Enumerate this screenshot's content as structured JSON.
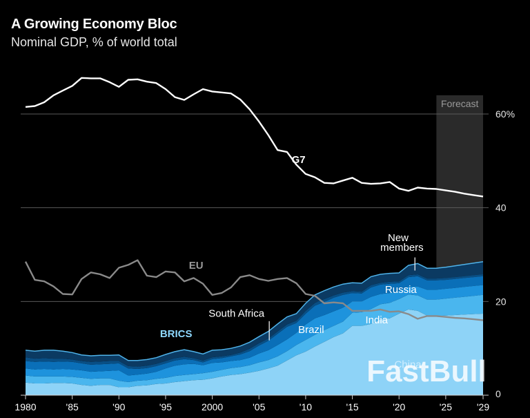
{
  "header": {
    "title": "A Growing Economy Bloc",
    "subtitle": "Nominal GDP, % of world total"
  },
  "colors": {
    "background": "#000000",
    "grid": "#5a5a5a",
    "g7": "#ffffff",
    "eu": "#8a8a8a",
    "forecast_band": "#2a2a2a",
    "brics_label": "#8ed8ff",
    "stack": [
      "#8ed3f7",
      "#4ab6ee",
      "#1e93dd",
      "#0a6fb8",
      "#094f85",
      "#0b3a62"
    ]
  },
  "watermark": "FastBull",
  "chart_data": {
    "type": "area",
    "title": "A Growing Economy Bloc",
    "subtitle": "Nominal GDP, % of world total",
    "xlim": [
      1980,
      2029
    ],
    "ylim": [
      0,
      64
    ],
    "x_ticks": [
      1980,
      1985,
      1990,
      1995,
      2000,
      2005,
      2010,
      2015,
      2020,
      2025,
      2029
    ],
    "x_tick_labels": [
      "1980",
      "'85",
      "'90",
      "'95",
      "2000",
      "'05",
      "'10",
      "'15",
      "'20",
      "'25",
      "'29"
    ],
    "y_ticks": [
      0,
      20,
      40,
      60
    ],
    "y_tick_labels": [
      "0",
      "20",
      "40",
      "60%"
    ],
    "grid": true,
    "forecast": {
      "label": "Forecast",
      "start": 2024,
      "end": 2029
    },
    "x": [
      1980,
      1981,
      1982,
      1983,
      1984,
      1985,
      1986,
      1987,
      1988,
      1989,
      1990,
      1991,
      1992,
      1993,
      1994,
      1995,
      1996,
      1997,
      1998,
      1999,
      2000,
      2001,
      2002,
      2003,
      2004,
      2005,
      2006,
      2007,
      2008,
      2009,
      2010,
      2011,
      2012,
      2013,
      2014,
      2015,
      2016,
      2017,
      2018,
      2019,
      2020,
      2021,
      2022,
      2023,
      2024,
      2025,
      2026,
      2027,
      2028,
      2029
    ],
    "lines": [
      {
        "name": "G7",
        "label": "G7",
        "values": [
          61.5,
          61.7,
          62.5,
          64.0,
          65.0,
          66.0,
          67.7,
          67.6,
          67.6,
          66.8,
          65.8,
          67.3,
          67.4,
          66.9,
          66.6,
          65.3,
          63.6,
          63.0,
          64.2,
          65.3,
          64.8,
          64.6,
          64.4,
          63.1,
          61.0,
          58.4,
          55.5,
          52.3,
          51.9,
          49.2,
          47.2,
          46.5,
          45.3,
          45.2,
          45.8,
          46.4,
          45.3,
          45.1,
          45.2,
          45.5,
          44.1,
          43.6,
          44.3,
          44.1,
          44.0,
          43.7,
          43.4,
          43.0,
          42.7,
          42.4
        ]
      },
      {
        "name": "EU",
        "label": "EU",
        "values": [
          28.5,
          24.6,
          24.3,
          23.2,
          21.6,
          21.5,
          24.8,
          26.2,
          25.8,
          25.0,
          27.2,
          27.8,
          28.8,
          25.5,
          25.2,
          26.4,
          26.2,
          24.3,
          25.0,
          23.8,
          21.4,
          21.8,
          23.0,
          25.2,
          25.6,
          24.8,
          24.4,
          24.8,
          25.0,
          23.9,
          21.6,
          21.2,
          19.6,
          19.8,
          19.6,
          18.0,
          18.0,
          18.0,
          18.3,
          17.8,
          17.9,
          17.3,
          16.3,
          16.9,
          16.9,
          16.7,
          16.5,
          16.4,
          16.2,
          16.0
        ]
      }
    ],
    "series": [
      {
        "name": "China",
        "label": "China",
        "values": [
          2.7,
          2.5,
          2.5,
          2.6,
          2.6,
          2.5,
          2.2,
          2.0,
          2.2,
          2.2,
          1.7,
          1.7,
          2.0,
          2.1,
          2.4,
          2.5,
          2.8,
          3.0,
          3.2,
          3.3,
          3.6,
          4.0,
          4.3,
          4.5,
          4.8,
          5.2,
          5.7,
          6.3,
          7.4,
          8.5,
          9.3,
          10.4,
          11.4,
          12.4,
          13.2,
          14.8,
          14.8,
          15.2,
          16.2,
          16.4,
          17.4,
          18.3,
          18.0,
          17.0,
          16.9,
          17.0,
          17.1,
          17.2,
          17.3,
          17.4
        ]
      },
      {
        "name": "India",
        "label": "India",
        "values": [
          1.5,
          1.5,
          1.5,
          1.4,
          1.4,
          1.4,
          1.5,
          1.5,
          1.4,
          1.4,
          1.4,
          1.1,
          1.1,
          1.1,
          1.1,
          1.2,
          1.3,
          1.3,
          1.3,
          1.4,
          1.4,
          1.4,
          1.5,
          1.5,
          1.6,
          1.8,
          1.8,
          2.0,
          2.0,
          2.2,
          2.5,
          2.5,
          2.5,
          2.4,
          2.5,
          2.8,
          2.9,
          3.2,
          3.2,
          3.3,
          3.1,
          3.2,
          3.3,
          3.4,
          3.5,
          3.6,
          3.7,
          3.8,
          3.9,
          4.0
        ]
      },
      {
        "name": "Brazil",
        "label": "Brazil",
        "values": [
          1.5,
          1.5,
          1.6,
          1.5,
          1.6,
          1.6,
          1.6,
          1.5,
          1.5,
          1.6,
          2.2,
          1.4,
          1.3,
          1.4,
          1.5,
          2.0,
          2.2,
          2.3,
          2.2,
          1.7,
          1.9,
          1.6,
          1.5,
          1.5,
          1.6,
          1.9,
          2.1,
          2.4,
          2.5,
          2.6,
          3.3,
          3.5,
          3.2,
          3.1,
          3.0,
          2.4,
          2.3,
          2.6,
          2.2,
          2.1,
          1.7,
          1.7,
          1.9,
          2.1,
          2.1,
          2.1,
          2.1,
          2.1,
          2.1,
          2.1
        ]
      },
      {
        "name": "Russia",
        "label": "Russia",
        "values": [
          1.6,
          1.6,
          1.6,
          1.6,
          1.6,
          1.6,
          1.5,
          1.5,
          1.5,
          1.5,
          1.5,
          1.5,
          1.2,
          1.2,
          1.2,
          1.1,
          1.1,
          1.1,
          0.8,
          0.6,
          0.8,
          0.9,
          1.0,
          1.2,
          1.4,
          1.7,
          2.0,
          2.4,
          2.7,
          2.1,
          2.3,
          2.7,
          2.8,
          2.9,
          2.7,
          1.8,
          1.7,
          2.0,
          2.0,
          2.0,
          1.7,
          2.0,
          2.2,
          2.0,
          2.0,
          1.9,
          1.9,
          1.9,
          1.9,
          1.9
        ]
      },
      {
        "name": "South Africa",
        "label": "South Africa",
        "values": [
          0.8,
          0.7,
          0.7,
          0.7,
          0.6,
          0.5,
          0.5,
          0.6,
          0.6,
          0.6,
          0.5,
          0.5,
          0.5,
          0.5,
          0.5,
          0.5,
          0.5,
          0.5,
          0.4,
          0.4,
          0.4,
          0.4,
          0.3,
          0.4,
          0.5,
          0.5,
          0.5,
          0.5,
          0.5,
          0.5,
          0.6,
          0.6,
          0.6,
          0.5,
          0.5,
          0.4,
          0.4,
          0.5,
          0.4,
          0.4,
          0.4,
          0.4,
          0.4,
          0.4,
          0.4,
          0.4,
          0.4,
          0.4,
          0.4,
          0.4
        ]
      },
      {
        "name": "New members",
        "label": "New\nmembers",
        "values": [
          1.5,
          1.6,
          1.7,
          1.8,
          1.6,
          1.5,
          1.3,
          1.3,
          1.3,
          1.2,
          1.3,
          1.2,
          1.3,
          1.3,
          1.3,
          1.4,
          1.4,
          1.5,
          1.4,
          1.4,
          1.5,
          1.4,
          1.4,
          1.4,
          1.4,
          1.4,
          1.5,
          1.6,
          1.6,
          1.5,
          1.6,
          1.7,
          1.8,
          1.8,
          1.8,
          1.8,
          1.8,
          1.8,
          1.8,
          1.8,
          1.8,
          2.1,
          2.3,
          2.2,
          2.2,
          2.3,
          2.4,
          2.5,
          2.6,
          2.7
        ]
      }
    ],
    "annotations": {
      "g7": "G7",
      "eu": "EU",
      "brics": "BRICS",
      "south_africa": "South Africa",
      "brazil": "Brazil",
      "india": "India",
      "russia": "Russia",
      "china": "China",
      "new_members": [
        "New",
        "members"
      ]
    }
  }
}
